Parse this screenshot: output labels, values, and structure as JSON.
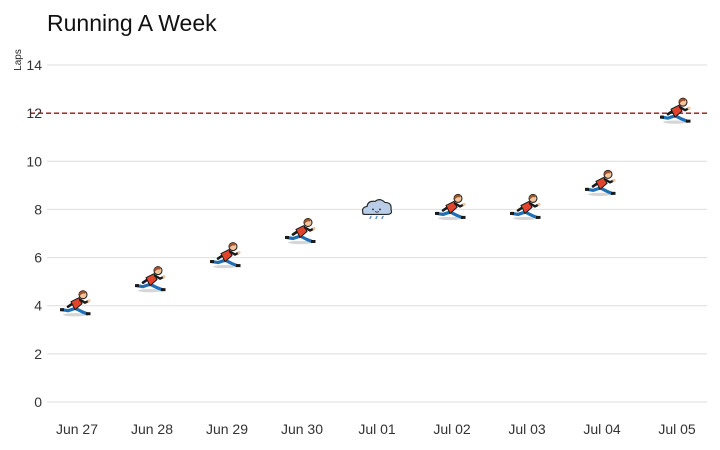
{
  "chart_data": {
    "type": "scatter",
    "title": "Running A Week",
    "xlabel": "",
    "ylabel": "Laps",
    "categories": [
      "Jun 27",
      "Jun 28",
      "Jun 29",
      "Jun 30",
      "Jul 01",
      "Jul 02",
      "Jul 03",
      "Jul 04",
      "Jul 05"
    ],
    "values": [
      4,
      5,
      6,
      7,
      8,
      8,
      8,
      9,
      12
    ],
    "markers": [
      "runner-icon",
      "runner-icon",
      "runner-icon",
      "runner-icon",
      "rain-cloud-icon",
      "runner-icon",
      "runner-icon",
      "runner-icon",
      "runner-icon"
    ],
    "ylim": [
      0,
      14
    ],
    "yticks": [
      0,
      2,
      4,
      6,
      8,
      10,
      12,
      14
    ],
    "reference_line": {
      "y": 12,
      "style": "dashed",
      "color": "#8b1a1a"
    },
    "grid": true,
    "legend": "none"
  }
}
